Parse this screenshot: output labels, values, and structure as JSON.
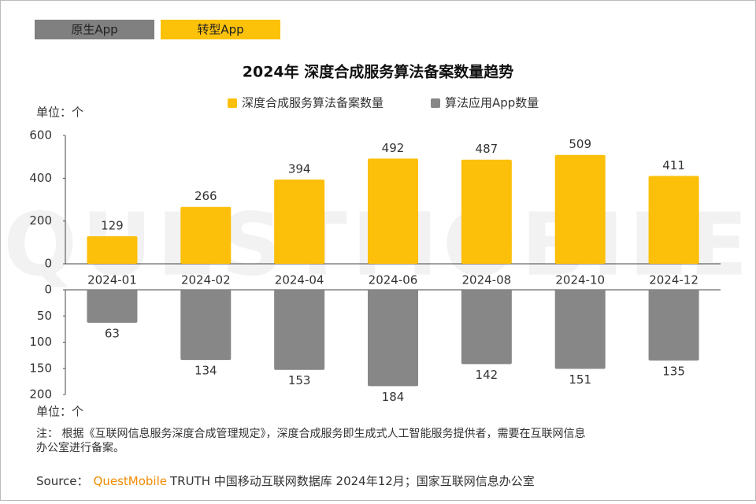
{
  "tabs": [
    "原生App",
    "转型App"
  ],
  "watermark": "QUESTMOBILE",
  "chart_data": {
    "type": "bar",
    "title": "2024年 深度合成服务算法备案数量趋势",
    "ylabel": "单位：个",
    "y2label": "单位：个",
    "categories": [
      "2024-01",
      "2024-02",
      "2024-04",
      "2024-06",
      "2024-08",
      "2024-10",
      "2024-12"
    ],
    "series": [
      {
        "name": "深度合成服务算法备案数量",
        "color": "#fcbf0a",
        "values": [
          129,
          266,
          394,
          492,
          487,
          509,
          411
        ]
      },
      {
        "name": "算法应用App数量",
        "color": "#878787",
        "axis": "y2",
        "values": [
          63,
          134,
          153,
          184,
          142,
          151,
          135
        ]
      }
    ],
    "ylim": [
      0,
      600
    ],
    "yticks": [
      0,
      200,
      400,
      600
    ],
    "y2lim": [
      0,
      200
    ],
    "y2ticks": [
      0,
      50,
      100,
      150,
      200
    ]
  },
  "note": "注：  根据《互联网信息服务深度合成管理规定》，深度合成服务即生成式人工智能服务提供者，需要在互联网信息办公室进行备案。",
  "source": {
    "label": "Source：",
    "brand": "QuestMobile",
    "text": "TRUTH 中国移动互联网数据库 2024年12月；国家互联网信息办公室"
  }
}
